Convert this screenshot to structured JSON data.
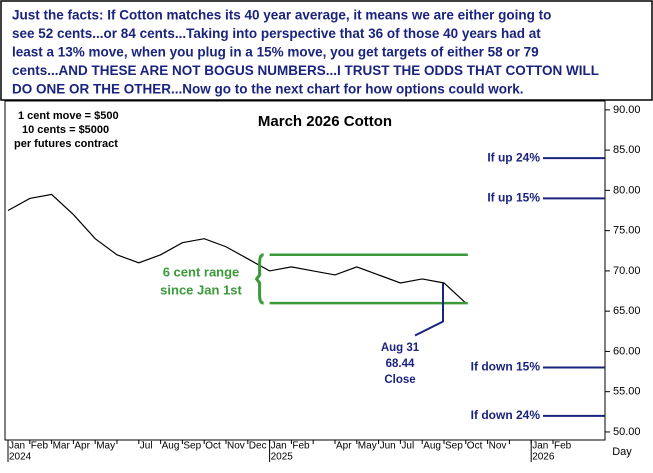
{
  "chart_data": {
    "type": "line",
    "notes": [
      "Just the facts: If Cotton matches its 40 year average, it means we are either going to",
      "see 52 cents...or 84 cents...Taking into perspective that 36 of those 40 years had at",
      "least a 13% move, when you plug in a 15% move, you get targets of either 58 or 79",
      "cents...AND THESE ARE NOT BOGUS NUMBERS...I TRUST THE ODDS THAT COTTON WILL",
      "DO ONE OR THE OTHER...Now go to the next chart for how options could work."
    ],
    "title": "March 2026 Cotton",
    "info": [
      "1 cent move = $500",
      "10 cents = $5000",
      "per futures contract"
    ],
    "categories": [
      "Jan",
      "Feb",
      "Mar",
      "Apr",
      "May",
      null,
      "Jul",
      "Aug",
      "Sep",
      "Oct",
      "Nov",
      "Dec",
      "Jan",
      "Feb",
      null,
      "Apr",
      "May",
      "Jun",
      "Jul",
      "Aug",
      "Sep",
      "Oct",
      "Nov",
      null,
      "Jan",
      "Feb"
    ],
    "years": [
      "2024",
      "2025",
      "2026"
    ],
    "x_unit": "Day",
    "series": [
      {
        "name": "March 2026 Cotton",
        "color": "#000000",
        "values": [
          77.5,
          79.0,
          79.5,
          77.0,
          74.0,
          72.0,
          71.0,
          72.0,
          73.5,
          74.0,
          73.0,
          71.5,
          70.0,
          70.5,
          70.0,
          69.5,
          70.5,
          69.5,
          68.5,
          69.0,
          68.5,
          66.0,
          null,
          null,
          null,
          null
        ]
      }
    ],
    "ylim": [
      49,
      91.1
    ],
    "yticks": [
      {
        "value": 50,
        "label": "50.00"
      },
      {
        "value": 55,
        "label": "55.00"
      },
      {
        "value": 60,
        "label": "60.00"
      },
      {
        "value": 65,
        "label": "65.00"
      },
      {
        "value": 70,
        "label": "70.00"
      },
      {
        "value": 75,
        "label": "75.00"
      },
      {
        "value": 80,
        "label": "80.00"
      },
      {
        "value": 85,
        "label": "85.00"
      },
      {
        "value": 90,
        "label": "90.00"
      }
    ],
    "range": {
      "labels": [
        "6 cent range",
        "since Jan 1st"
      ],
      "values": [
        72,
        66
      ],
      "color": "#3a9a3a"
    },
    "levels": [
      {
        "label": "If up 24%",
        "value": 84
      },
      {
        "label": "If up 15%",
        "value": 79
      },
      {
        "label": "If down 15%",
        "value": 58
      },
      {
        "label": "If down 24%",
        "value": 52
      }
    ],
    "level_color": "#1a237e",
    "close_marker": {
      "date": "Aug 31",
      "value": 68.44,
      "text": "Close"
    }
  }
}
